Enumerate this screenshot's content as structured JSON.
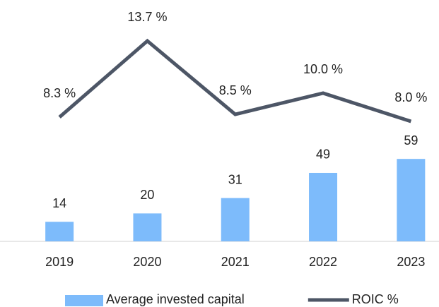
{
  "chart_data": {
    "type": "combo",
    "categories": [
      "2019",
      "2020",
      "2021",
      "2022",
      "2023"
    ],
    "ylim": [
      0,
      150
    ],
    "y2lim": [
      -0.5,
      14.35
    ],
    "series": [
      {
        "name": "Average invested capital",
        "type": "bar",
        "color": "#7dbbfb",
        "values": [
          14,
          20,
          31,
          49,
          59
        ]
      },
      {
        "name": "ROIC %",
        "type": "line",
        "axis": "y2",
        "color": "#4d5666",
        "values": [
          8.3,
          13.7,
          8.5,
          10.0,
          8.0
        ],
        "value_labels": [
          "8.3 %",
          "13.7 %",
          "8.5 %",
          "10.0 %",
          "8.0 %"
        ]
      }
    ],
    "legend": "bottom"
  }
}
